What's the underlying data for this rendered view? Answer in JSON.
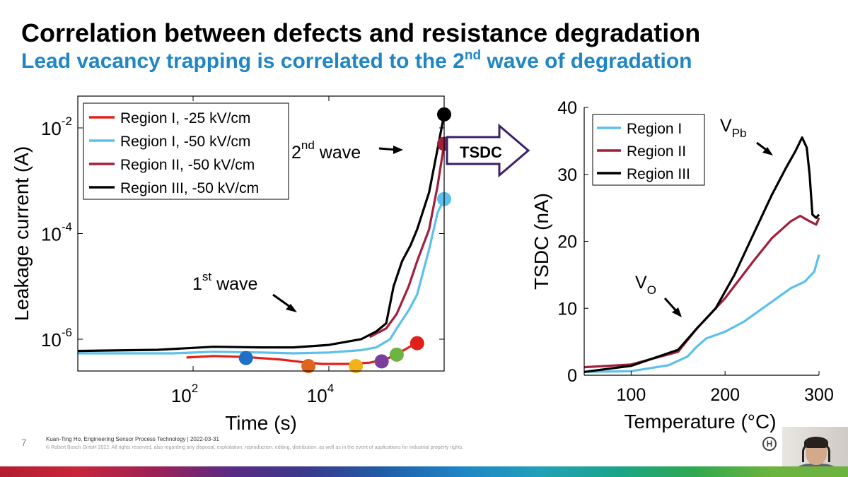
{
  "slide": {
    "title": "Correlation between defects and resistance degradation",
    "subtitle_pre": "Lead vacancy trapping is correlated to the 2",
    "subtitle_sup": "nd",
    "subtitle_post": " wave of degradation",
    "page_number": "7",
    "footer_line1": "Kuan-Ting Ho, Engineering Sensor Process Technology | 2022-03-31",
    "footer_line2": "© Robert Bosch GmbH 2022. All rights reserved, also regarding any disposal, exploitation, reproduction, editing, distribution, as well as in the event of applications for industrial property rights.",
    "arrow_label": "TSDC",
    "logo_icon": "bosch-logo-icon",
    "bottom_strip_colors": [
      "#b41e2e",
      "#c8263a",
      "#9e2156",
      "#5a2a86",
      "#3a3a8c",
      "#1f5fa8",
      "#1f86c6",
      "#22a0b8",
      "#1aa58a",
      "#2fa84f",
      "#6db33f"
    ]
  },
  "chart_data": [
    {
      "type": "line",
      "xlabel": "Time (s)",
      "ylabel": "Leakage current (A)",
      "xscale": "log",
      "yscale": "log",
      "xlim": [
        2,
        500000
      ],
      "ylim": [
        2.5e-07,
        0.04
      ],
      "xticks": [
        {
          "base": "10",
          "exp": "2"
        },
        {
          "base": "10",
          "exp": "4"
        }
      ],
      "yticks": [
        {
          "base": "10",
          "exp": "-2"
        },
        {
          "base": "10",
          "exp": "-4"
        },
        {
          "base": "10",
          "exp": "-6"
        }
      ],
      "legend_position": "top-left",
      "series": [
        {
          "name": "Region I, -25 kV/cm",
          "color": "#e0201b",
          "points": [
            [
              80,
              4.5e-07
            ],
            [
              200,
              4.8e-07
            ],
            [
              600,
              4.6e-07
            ],
            [
              2000,
              4.1e-07
            ],
            [
              4000,
              3.7e-07
            ],
            [
              8000,
              3.4e-07
            ],
            [
              20000,
              3.4e-07
            ],
            [
              40000,
              3.6e-07
            ],
            [
              70000,
              4.2e-07
            ],
            [
              100000,
              5.2e-07
            ],
            [
              150000,
              7e-07
            ],
            [
              200000,
              8.5e-07
            ]
          ],
          "markers": [
            [
              600,
              4.4e-07
            ],
            [
              5000,
              3.1e-07
            ],
            [
              25000,
              3.1e-07
            ],
            [
              60000,
              3.8e-07
            ],
            [
              100000,
              5.1e-07
            ],
            [
              200000,
              8.4e-07
            ]
          ],
          "marker_colors": [
            "#1f6fc6",
            "#e0641b",
            "#f2b21a",
            "#7a3f9e",
            "#6db33f",
            "#e0201b"
          ]
        },
        {
          "name": "Region I, -50 kV/cm",
          "color": "#5bc0eb",
          "points": [
            [
              2,
              5.4e-07
            ],
            [
              50,
              5.4e-07
            ],
            [
              200,
              5.8e-07
            ],
            [
              1000,
              5.6e-07
            ],
            [
              3000,
              5.4e-07
            ],
            [
              10000,
              5.6e-07
            ],
            [
              30000,
              6.2e-07
            ],
            [
              50000,
              7e-07
            ],
            [
              80000,
              1e-06
            ],
            [
              100000,
              1.6e-06
            ],
            [
              150000,
              3.5e-06
            ],
            [
              200000,
              7e-06
            ],
            [
              300000,
              5e-05
            ],
            [
              400000,
              0.00025
            ],
            [
              500000,
              0.00045
            ]
          ],
          "markers": [
            [
              500000,
              0.00045
            ]
          ]
        },
        {
          "name": "Region II, -50 kV/cm",
          "color": "#a11f3a",
          "points": [
            [
              40000,
              1.1e-06
            ],
            [
              70000,
              1.6e-06
            ],
            [
              100000,
              3e-06
            ],
            [
              150000,
              1e-05
            ],
            [
              200000,
              3e-05
            ],
            [
              300000,
              0.00012
            ],
            [
              400000,
              0.0008
            ],
            [
              500000,
              0.005
            ]
          ],
          "markers": [
            [
              500000,
              0.005
            ]
          ]
        },
        {
          "name": "Region III, -50 kV/cm",
          "color": "#000000",
          "points": [
            [
              2,
              6e-07
            ],
            [
              30,
              6.3e-07
            ],
            [
              200,
              7.2e-07
            ],
            [
              1000,
              7e-07
            ],
            [
              3000,
              7e-07
            ],
            [
              10000,
              7.8e-07
            ],
            [
              30000,
              1e-06
            ],
            [
              50000,
              1.4e-06
            ],
            [
              70000,
              2e-06
            ],
            [
              90000,
              1e-05
            ],
            [
              120000,
              3e-05
            ],
            [
              160000,
              6e-05
            ],
            [
              200000,
              0.00012
            ],
            [
              300000,
              0.0006
            ],
            [
              400000,
              0.004
            ],
            [
              500000,
              0.018
            ]
          ],
          "markers": [
            [
              500000,
              0.018
            ]
          ]
        }
      ],
      "annotations": [
        {
          "base": "1",
          "sup": "st",
          "rest": " wave"
        },
        {
          "base": "2",
          "sup": "nd",
          "rest": " wave"
        }
      ]
    },
    {
      "type": "line",
      "xlabel": "Temperature (°C)",
      "ylabel": "TSDC (nA)",
      "xlim": [
        50,
        300
      ],
      "ylim": [
        0,
        40
      ],
      "xticks": [
        "100",
        "200",
        "300"
      ],
      "yticks": [
        "0",
        "10",
        "20",
        "30",
        "40"
      ],
      "legend_position": "top-left",
      "series": [
        {
          "name": "Region I",
          "color": "#5bc0eb",
          "points": [
            [
              50,
              0.5
            ],
            [
              100,
              0.6
            ],
            [
              140,
              1.5
            ],
            [
              160,
              2.8
            ],
            [
              170,
              4.3
            ],
            [
              180,
              5.5
            ],
            [
              200,
              6.5
            ],
            [
              220,
              8
            ],
            [
              250,
              11
            ],
            [
              270,
              13
            ],
            [
              285,
              14
            ],
            [
              295,
              15.5
            ],
            [
              300,
              18
            ]
          ]
        },
        {
          "name": "Region II",
          "color": "#a11f3a",
          "points": [
            [
              50,
              1.2
            ],
            [
              100,
              1.6
            ],
            [
              150,
              3.5
            ],
            [
              170,
              7
            ],
            [
              200,
              11.5
            ],
            [
              230,
              17
            ],
            [
              250,
              20.5
            ],
            [
              270,
              23
            ],
            [
              280,
              23.8
            ],
            [
              290,
              23
            ],
            [
              297,
              22.5
            ],
            [
              300,
              23.5
            ]
          ]
        },
        {
          "name": "Region III",
          "color": "#000000",
          "points": [
            [
              50,
              0.5
            ],
            [
              100,
              1.4
            ],
            [
              150,
              3.8
            ],
            [
              170,
              7
            ],
            [
              190,
              10
            ],
            [
              210,
              15
            ],
            [
              230,
              21
            ],
            [
              250,
              27
            ],
            [
              265,
              31
            ],
            [
              275,
              33.5
            ],
            [
              282,
              35.5
            ],
            [
              287,
              34
            ],
            [
              290,
              30
            ],
            [
              293,
              24
            ],
            [
              297,
              23.5
            ],
            [
              300,
              24
            ]
          ]
        }
      ],
      "annotations": [
        {
          "base": "V",
          "sub": "O"
        },
        {
          "base": "V",
          "sub": "Pb"
        }
      ]
    }
  ]
}
